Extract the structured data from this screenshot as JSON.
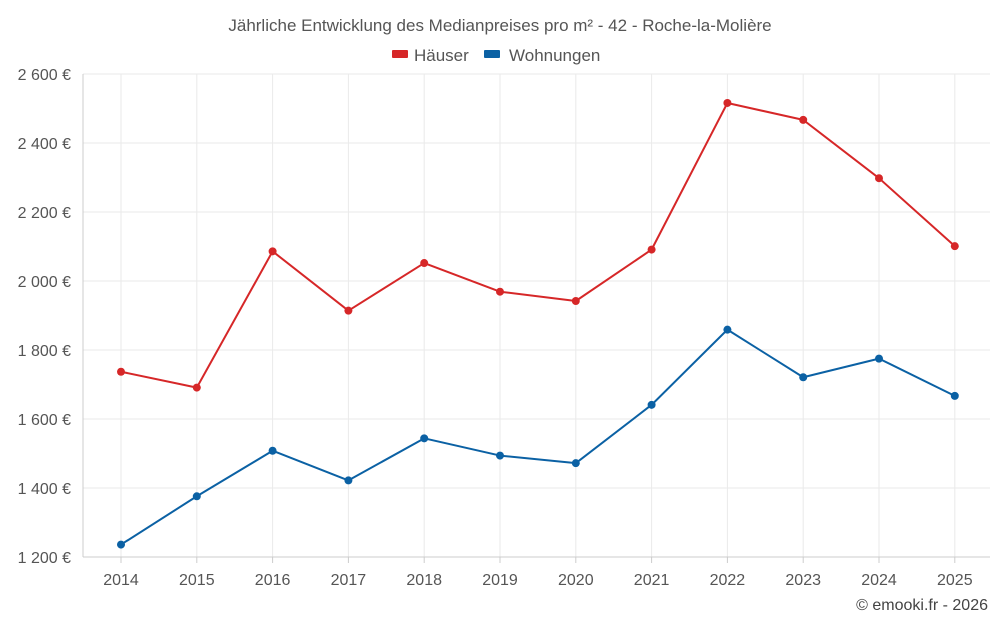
{
  "chart_data": {
    "type": "line",
    "title": "Jährliche Entwicklung des Medianpreises pro m² - 42 - Roche-la-Molière",
    "xlabel": "",
    "ylabel": "",
    "categories": [
      "2014",
      "2015",
      "2016",
      "2017",
      "2018",
      "2019",
      "2020",
      "2021",
      "2022",
      "2023",
      "2024",
      "2025"
    ],
    "ylim": [
      1200,
      2600
    ],
    "yticks": [
      1200,
      1400,
      1600,
      1800,
      2000,
      2200,
      2400,
      2600
    ],
    "ytick_labels": [
      "1 200 €",
      "1 400 €",
      "1 600 €",
      "1 800 €",
      "2 000 €",
      "2 200 €",
      "2 400 €",
      "2 600 €"
    ],
    "grid": true,
    "legend_position": "top-center",
    "series": [
      {
        "name": "Häuser",
        "color": "#d62728",
        "values": [
          1737,
          1691,
          2086,
          1914,
          2052,
          1969,
          1942,
          2091,
          2516,
          2467,
          2298,
          2101
        ]
      },
      {
        "name": "Wohnungen",
        "color": "#0b61a4",
        "values": [
          1236,
          1376,
          1508,
          1422,
          1544,
          1494,
          1472,
          1641,
          1859,
          1721,
          1775,
          1667
        ]
      }
    ]
  },
  "footer": {
    "credit": "© emooki.fr - 2026"
  }
}
